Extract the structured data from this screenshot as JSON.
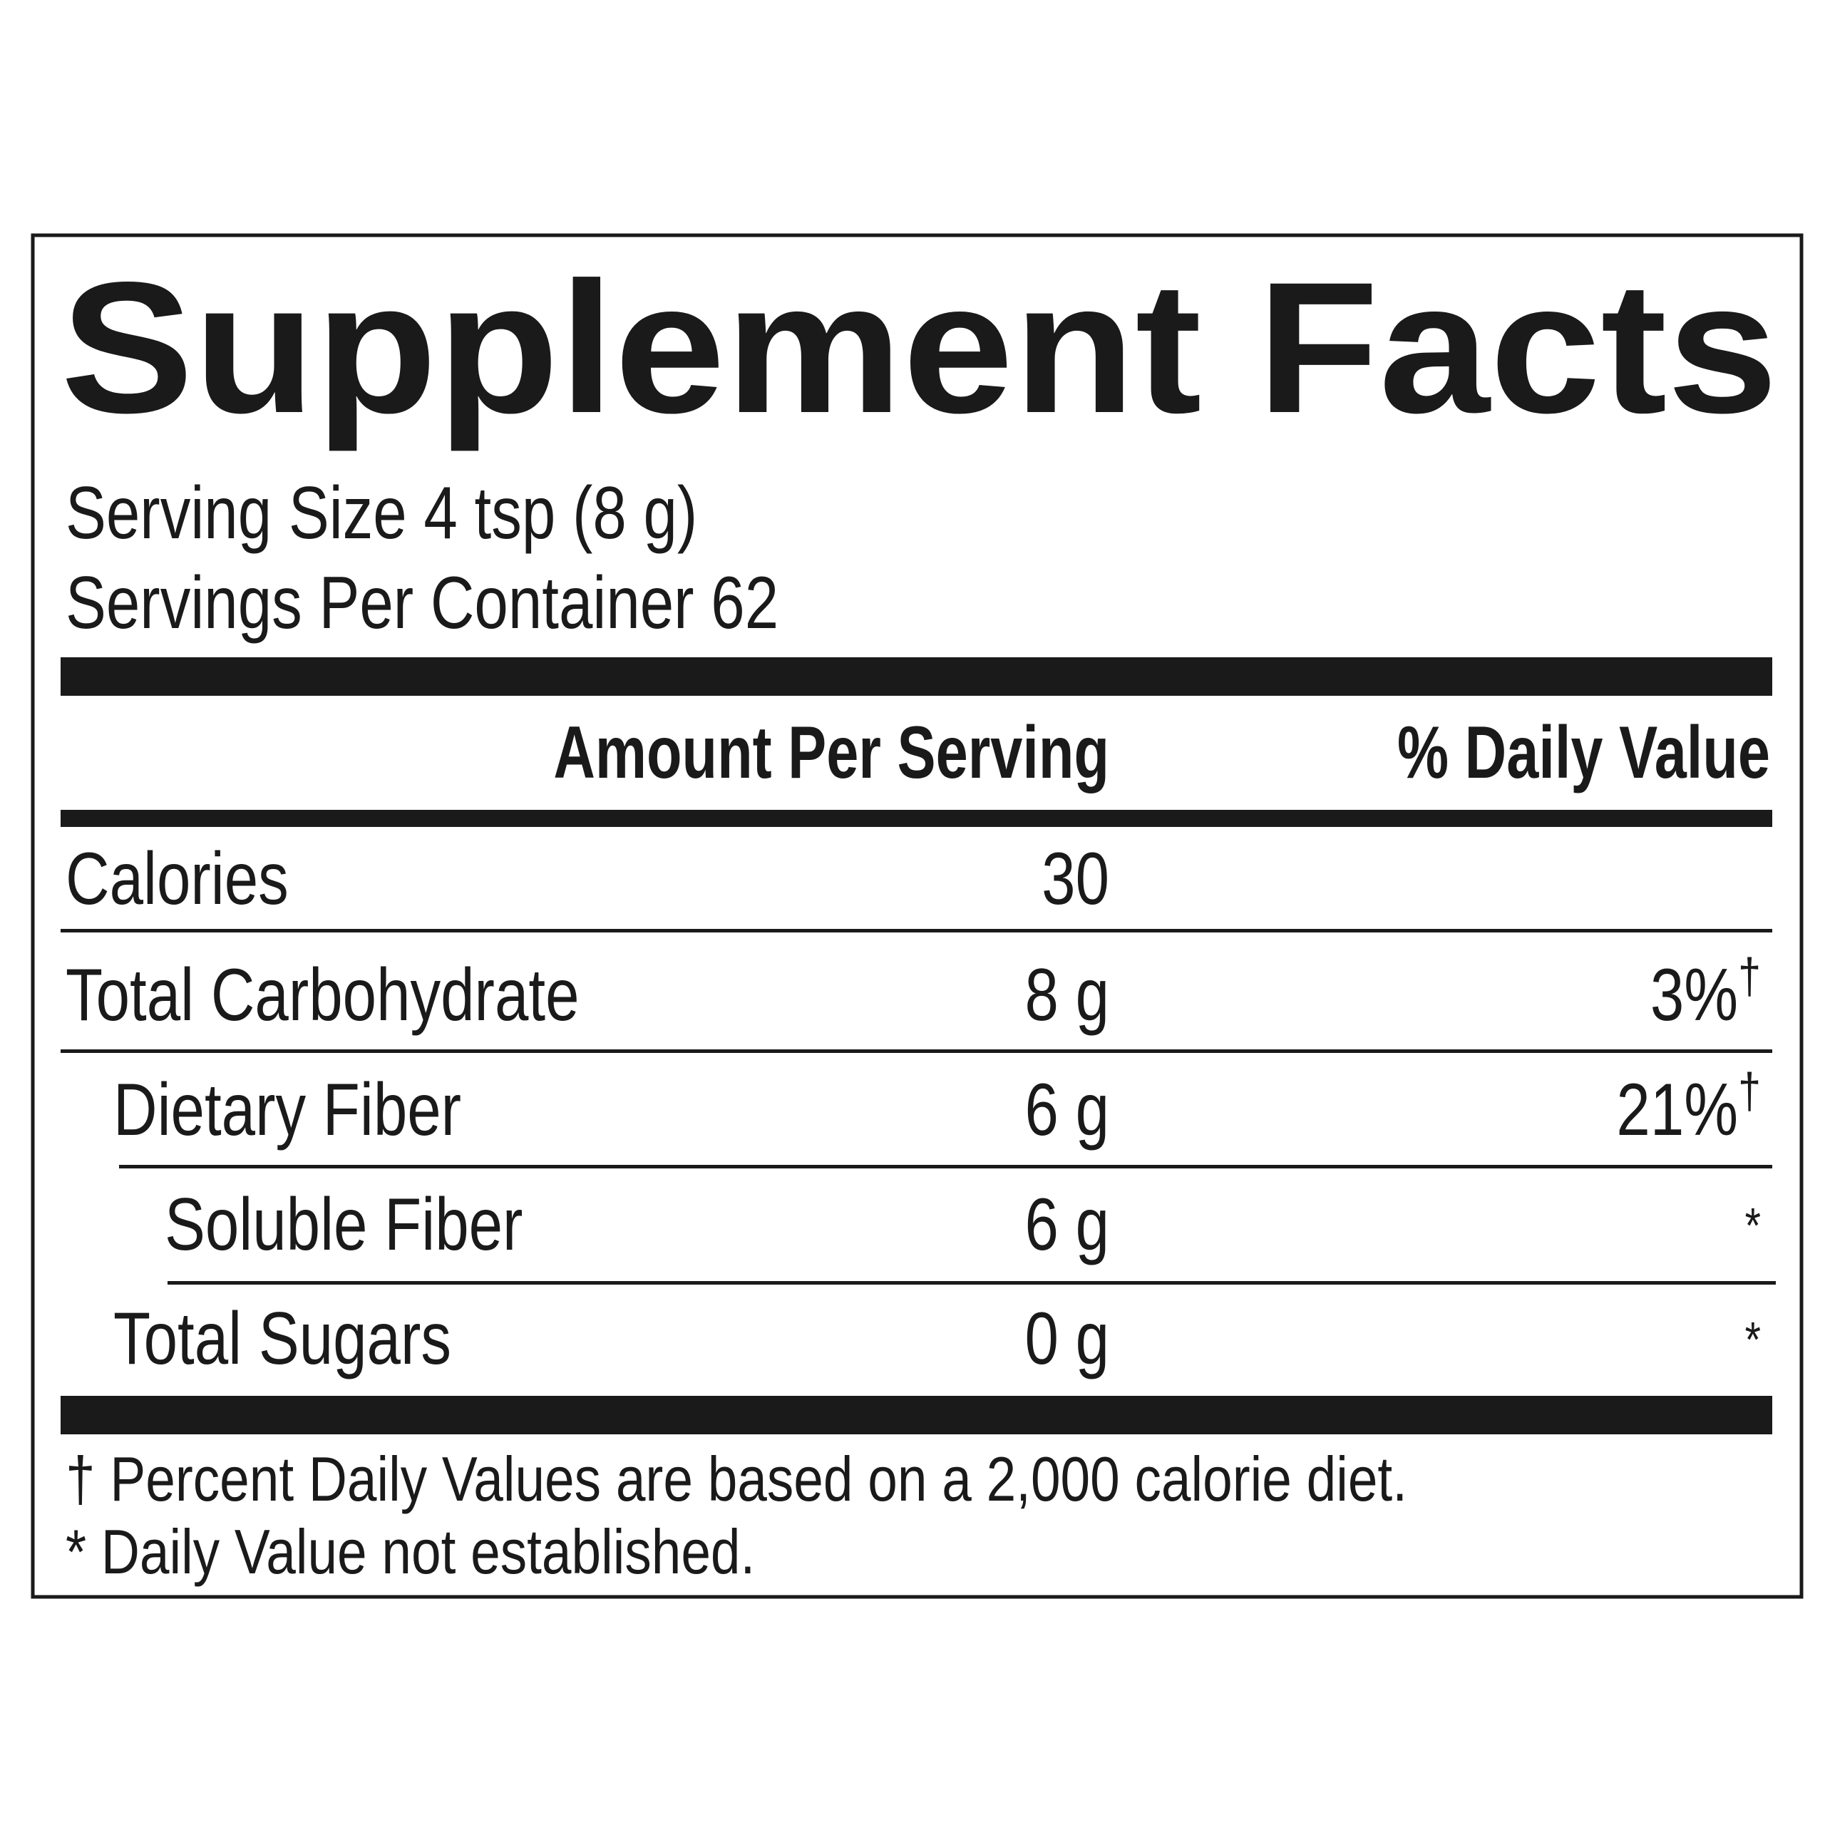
{
  "title": "Supplement Facts",
  "serving_size": "Serving Size 4 tsp (8 g)",
  "servings_per_container": "Servings Per Container 62",
  "table": {
    "header": [
      "Amount Per Serving",
      "% Daily Value"
    ],
    "rows": [
      {
        "name": "Calories",
        "amount": "30"
      },
      {
        "name": "Total Carbohydrate",
        "amount": "8 g",
        "daily_value": "3%",
        "mark": "†"
      },
      {
        "name": "Dietary Fiber",
        "amount": "6 g",
        "daily_value": "21%",
        "mark": "†"
      },
      {
        "name": "Soluble Fiber",
        "amount": "6 g",
        "mark": "*"
      },
      {
        "name": "Total Sugars",
        "amount": "0 g",
        "mark": "*"
      }
    ]
  },
  "footnotes": [
    "† Percent Daily Values are based on a 2,000 calorie diet.",
    "* Daily Value not established."
  ]
}
